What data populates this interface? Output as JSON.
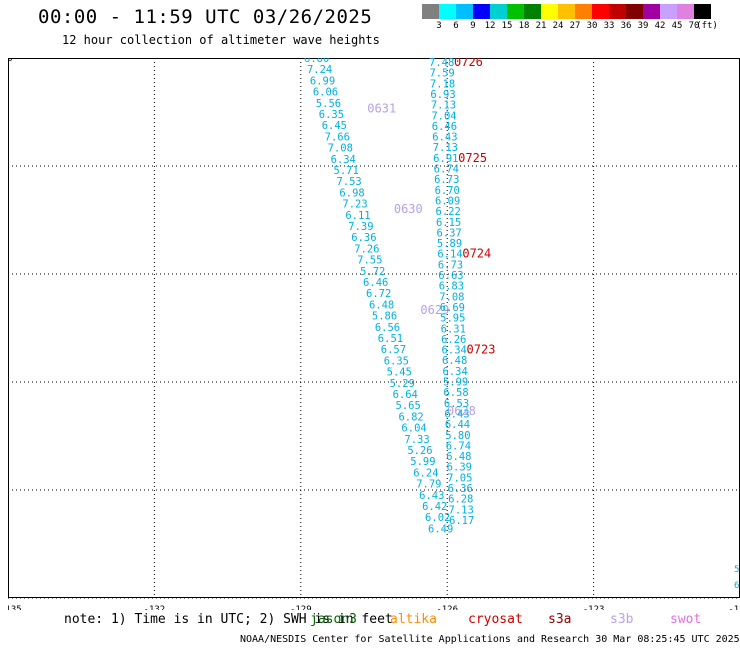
{
  "header": {
    "title": "00:00 - 11:59 UTC 03/26/2025",
    "subtitle": "12 hour collection of altimeter wave heights"
  },
  "colorbar": {
    "colors": [
      "#808080",
      "#00ffff",
      "#00bfff",
      "#0000ff",
      "#00d0d0",
      "#00c000",
      "#008000",
      "#ffff00",
      "#ffc000",
      "#ff8000",
      "#ff0000",
      "#c00000",
      "#800000",
      "#a000a0",
      "#c8a0ff",
      "#e080e0",
      "#000000"
    ],
    "labels": [
      "3",
      "6",
      "9",
      "12",
      "15",
      "18",
      "21",
      "24",
      "27",
      "30",
      "33",
      "36",
      "39",
      "42",
      "45",
      "70",
      "(ft)"
    ]
  },
  "axes": {
    "x_ticks": [
      "-135",
      "-132",
      "-129",
      "-126",
      "-123",
      "-120"
    ],
    "y_ticks": [
      "0",
      "2",
      "4",
      "6",
      "8",
      "10"
    ]
  },
  "tracks": [
    {
      "id": "left",
      "values": [
        "6.80",
        "7.24",
        "6.99",
        "6.06",
        "5.56",
        "6.35",
        "6.45",
        "7.66",
        "7.08",
        "6.34",
        "5.71",
        "7.53",
        "6.98",
        "7.23",
        "6.11",
        "7.39",
        "6.36",
        "7.26",
        "7.55",
        "5.72",
        "6.46",
        "6.72",
        "6.48",
        "5.86",
        "6.56",
        "6.51",
        "6.57",
        "6.35",
        "5.45",
        "5.29",
        "6.64",
        "5.65",
        "6.82",
        "6.04",
        "7.33",
        "5.26",
        "5.99",
        "6.24",
        "7.79",
        "6.43",
        "6.42",
        "6.02",
        "6.49"
      ],
      "time_labels": [
        {
          "text": "0631",
          "row": 9
        },
        {
          "text": "0630",
          "row": 27
        },
        {
          "text": "0629",
          "row": 45
        },
        {
          "text": "0628",
          "row": 63
        }
      ]
    },
    {
      "id": "right",
      "values": [
        "7.48",
        "7.59",
        "7.18",
        "6.93",
        "7.13",
        "7.04",
        "6.46",
        "6.43",
        "7.13",
        "6.91",
        "6.74",
        "6.73",
        "6.70",
        "6.09",
        "6.22",
        "6.15",
        "6.37",
        "5.89",
        "6.14",
        "6.73",
        "6.63",
        "6.83",
        "7.08",
        "6.69",
        "5.95",
        "6.31",
        "6.26",
        "6.34",
        "6.48",
        "6.34",
        "5.99",
        "6.58",
        "6.53",
        "6.43",
        "6.44",
        "5.80",
        "6.74",
        "6.48",
        "6.39",
        "7.05",
        "6.36",
        "6.28",
        "7.13",
        "6.17"
      ],
      "time_labels": [
        {
          "text": "0726",
          "row": 0
        },
        {
          "text": "0725",
          "row": 18
        },
        {
          "text": "0724",
          "row": 36
        },
        {
          "text": "0723",
          "row": 54
        }
      ]
    }
  ],
  "edge_values": [
    "5",
    "6"
  ],
  "footer": {
    "note": "note: 1) Time is in UTC; 2) SWH is in feet",
    "satellites": [
      {
        "name": "jason3",
        "color": "#006400"
      },
      {
        "name": "altika",
        "color": "#ff8c00"
      },
      {
        "name": "cryosat",
        "color": "#cc0000"
      },
      {
        "name": "s3a",
        "color": "#8b0000"
      },
      {
        "name": "s3b",
        "color": "#c0a0e0"
      },
      {
        "name": "swot",
        "color": "#e070e0"
      }
    ],
    "credit": "NOAA/NESDIS Center for Satellite Applications and Research    30 Mar 08:25:45 UTC 2025"
  },
  "colors": {
    "value_text": "#00b0e0",
    "time_label_left": "#b8a0e8",
    "time_label_right": "#cc0000"
  }
}
